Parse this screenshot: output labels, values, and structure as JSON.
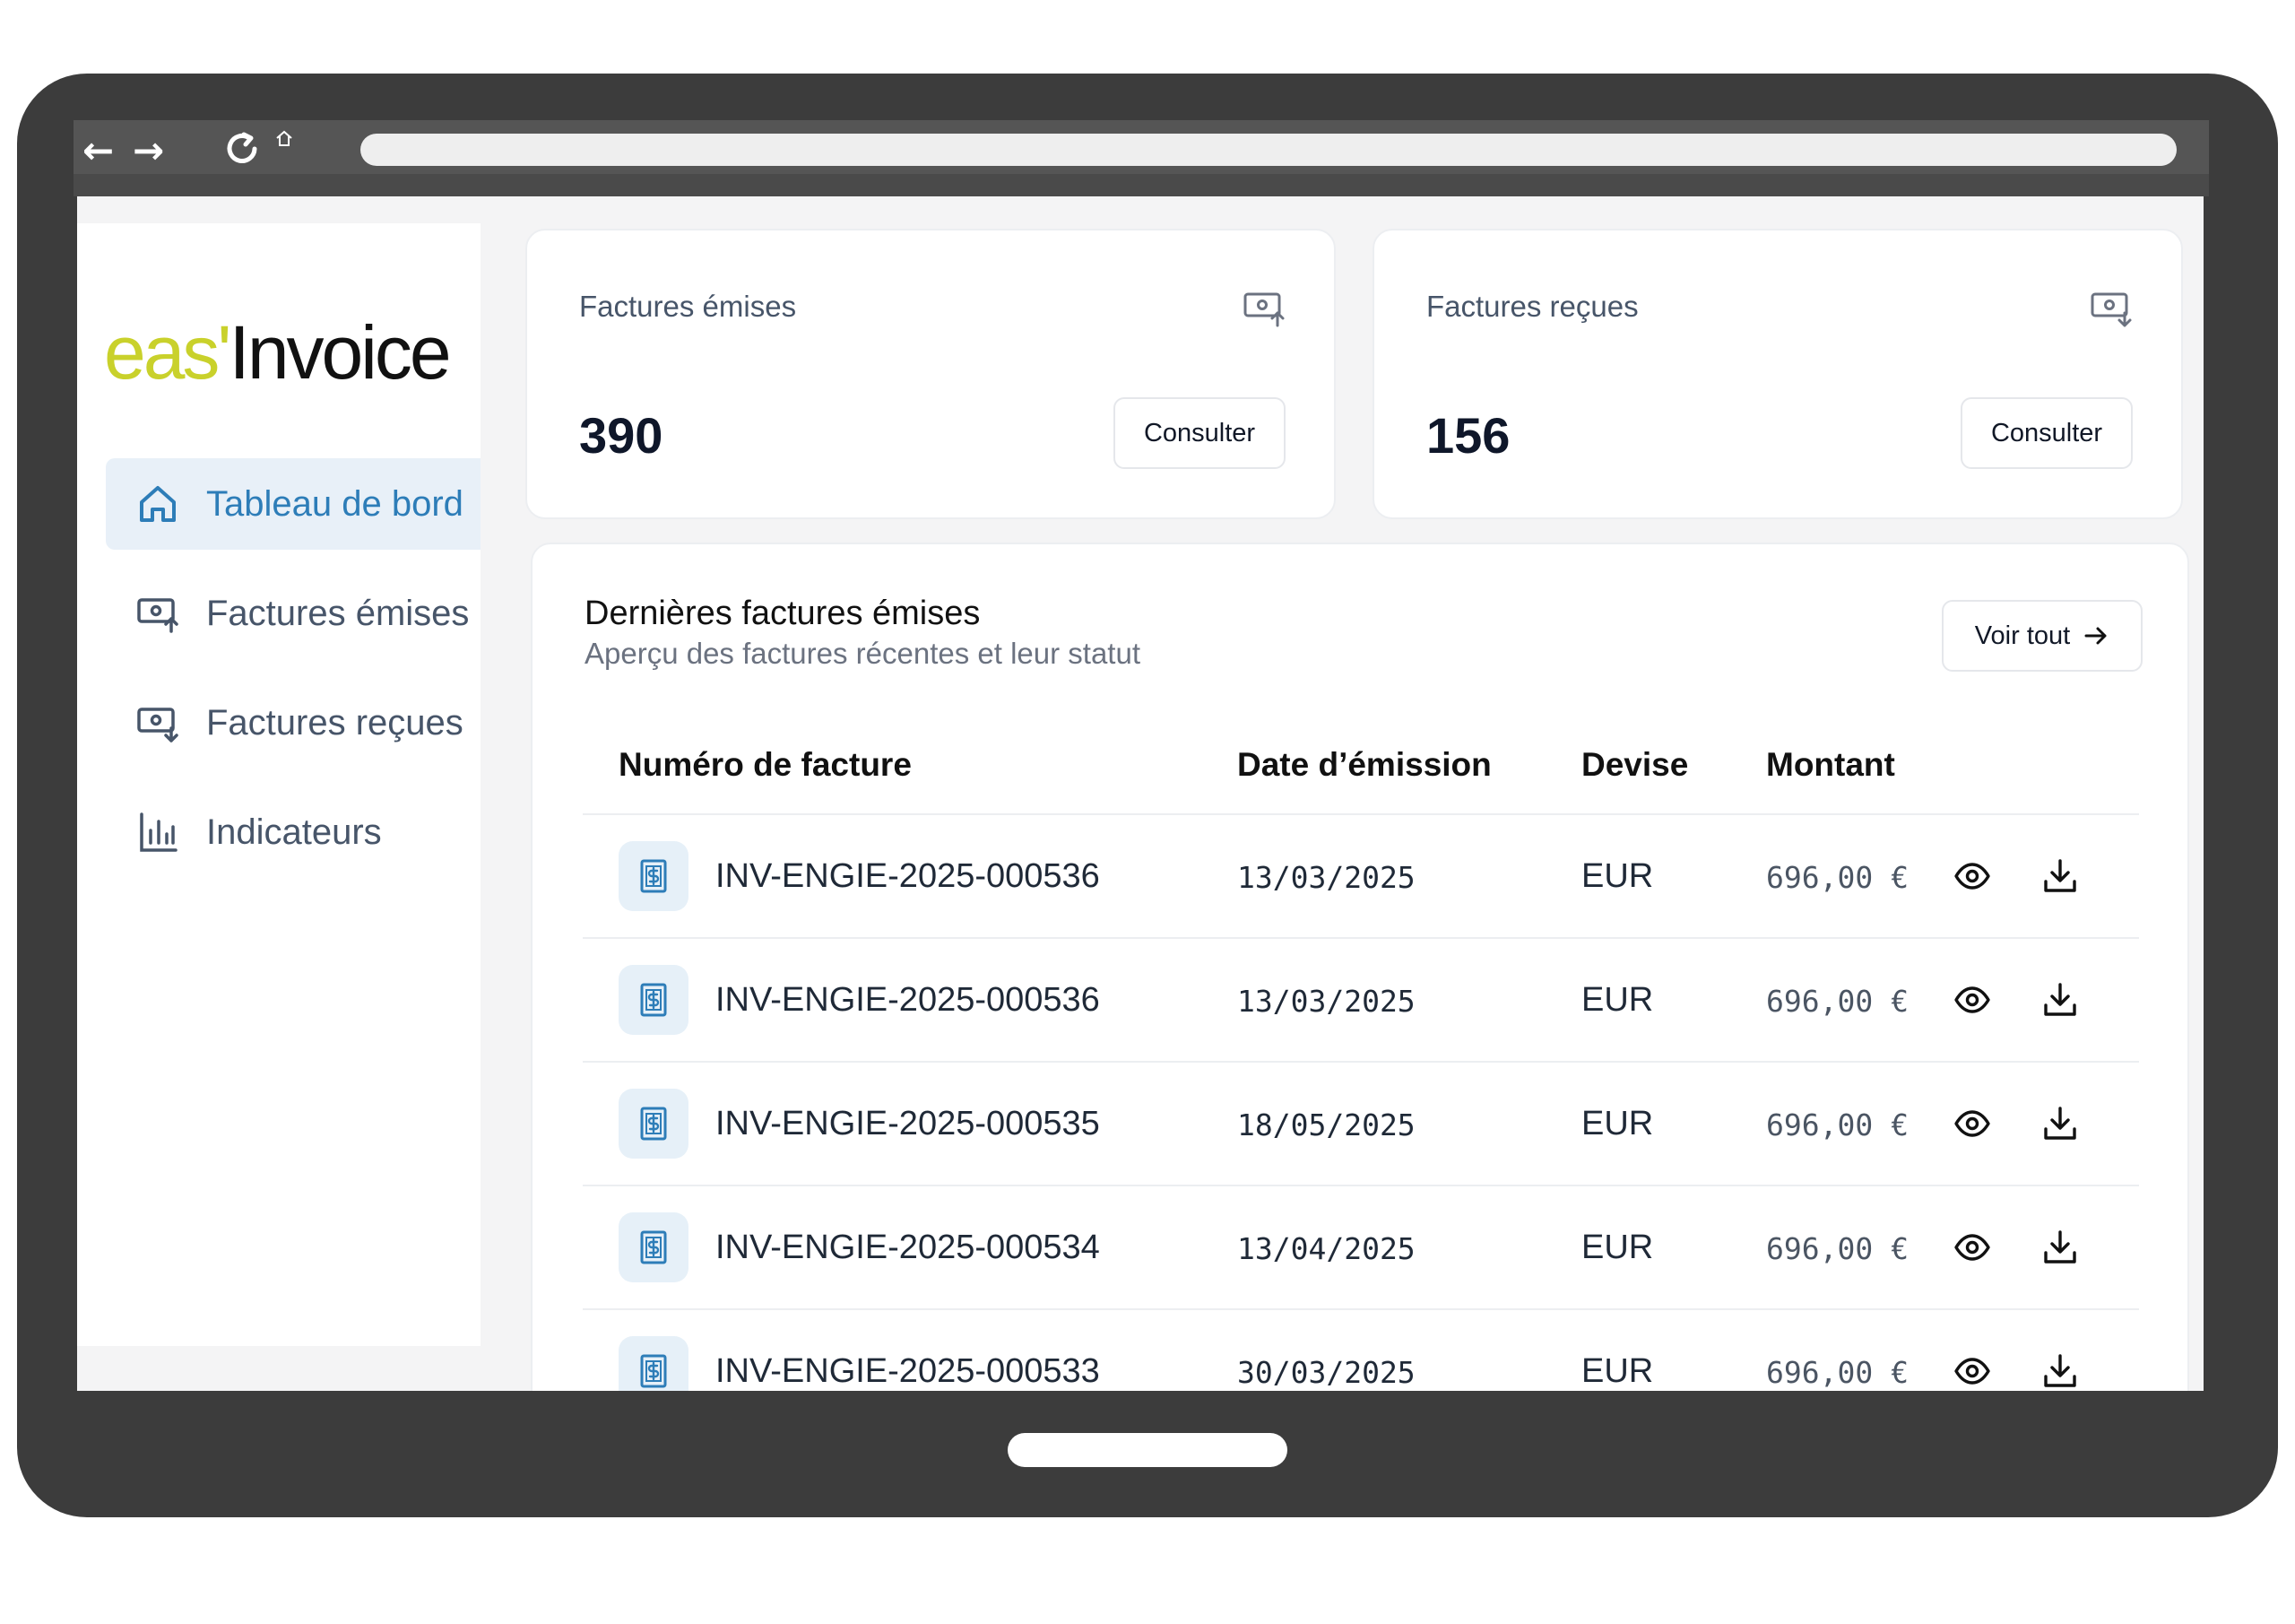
{
  "app": {
    "logo_prefix": "eas'",
    "logo_suffix": "Invoice"
  },
  "sidebar": {
    "items": [
      {
        "label": "Tableau de bord",
        "icon": "home-icon",
        "active": true
      },
      {
        "label": "Factures émises",
        "icon": "invoice-sent-icon",
        "active": false
      },
      {
        "label": "Factures reçues",
        "icon": "invoice-received-icon",
        "active": false
      },
      {
        "label": "Indicateurs",
        "icon": "bar-chart-icon",
        "active": false
      }
    ]
  },
  "stats": {
    "issued": {
      "label": "Factures émises",
      "value": "390",
      "button": "Consulter",
      "icon": "invoice-sent-icon"
    },
    "received": {
      "label": "Factures reçues",
      "value": "156",
      "button": "Consulter",
      "icon": "invoice-received-icon"
    }
  },
  "recent": {
    "title": "Dernières factures émises",
    "subtitle": "Aperçu des factures récentes et leur statut",
    "view_all": "Voir tout",
    "columns": {
      "number": "Numéro de facture",
      "date": "Date d’émission",
      "currency": "Devise",
      "amount": "Montant"
    },
    "rows": [
      {
        "number": "INV-ENGIE-2025-000536",
        "date": "13/03/2025",
        "currency": "EUR",
        "amount": "696,00 €"
      },
      {
        "number": "INV-ENGIE-2025-000536",
        "date": "13/03/2025",
        "currency": "EUR",
        "amount": "696,00 €"
      },
      {
        "number": "INV-ENGIE-2025-000535",
        "date": "18/05/2025",
        "currency": "EUR",
        "amount": "696,00 €"
      },
      {
        "number": "INV-ENGIE-2025-000534",
        "date": "13/04/2025",
        "currency": "EUR",
        "amount": "696,00 €"
      },
      {
        "number": "INV-ENGIE-2025-000533",
        "date": "30/03/2025",
        "currency": "EUR",
        "amount": "696,00 €"
      }
    ]
  },
  "colors": {
    "accent": "#2d7db8",
    "logo_accent": "#c9d12b",
    "frame": "#3c3c3c"
  }
}
